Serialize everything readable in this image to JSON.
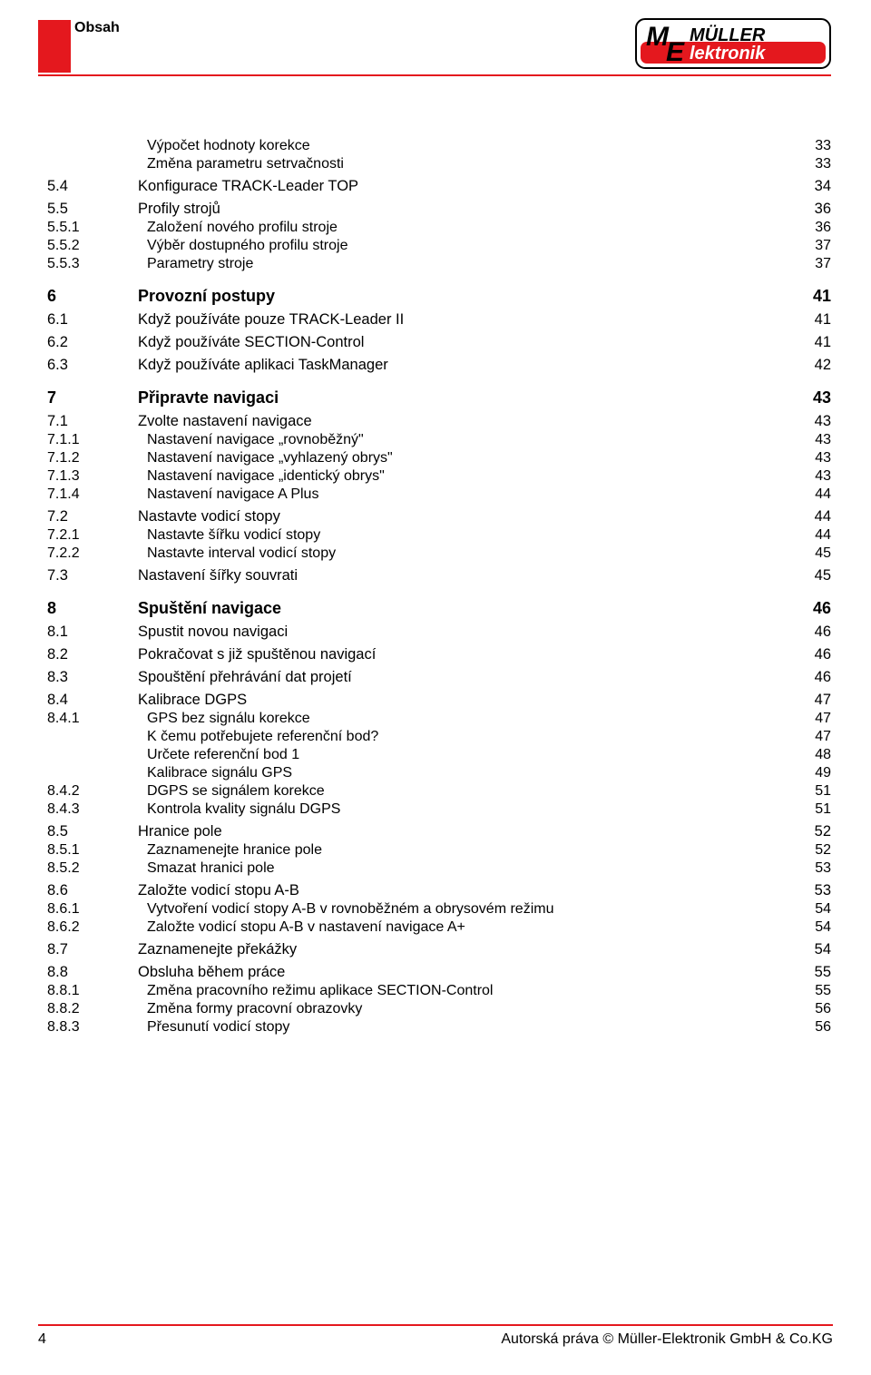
{
  "header": {
    "title": "Obsah",
    "accent_color": "#e4181e"
  },
  "logo": {
    "text_top": "MÜLLER",
    "text_bottom": "Elektronik",
    "frame_color": "#e4181e",
    "text_color": "#000000"
  },
  "toc": [
    {
      "level": "3",
      "num": "",
      "title": "Výpočet hodnoty korekce",
      "page": "33"
    },
    {
      "level": "3",
      "num": "",
      "title": "Změna parametru setrvačnosti",
      "page": "33"
    },
    {
      "level": "1",
      "num": "5.4",
      "title": "Konfigurace TRACK-Leader TOP",
      "page": "34"
    },
    {
      "level": "1",
      "num": "5.5",
      "title": "Profily strojů",
      "page": "36"
    },
    {
      "level": "2",
      "num": "5.5.1",
      "title": "Založení nového profilu stroje",
      "page": "36"
    },
    {
      "level": "2",
      "num": "5.5.2",
      "title": "Výběr dostupného profilu stroje",
      "page": "37"
    },
    {
      "level": "2",
      "num": "5.5.3",
      "title": "Parametry stroje",
      "page": "37"
    },
    {
      "level": "h",
      "num": "6",
      "title": "Provozní postupy",
      "page": "41"
    },
    {
      "level": "1",
      "num": "6.1",
      "title": "Když používáte pouze TRACK-Leader II",
      "page": "41"
    },
    {
      "level": "1",
      "num": "6.2",
      "title": "Když používáte SECTION-Control",
      "page": "41"
    },
    {
      "level": "1",
      "num": "6.3",
      "title": "Když používáte aplikaci TaskManager",
      "page": "42"
    },
    {
      "level": "h",
      "num": "7",
      "title": "Připravte navigaci",
      "page": "43"
    },
    {
      "level": "1",
      "num": "7.1",
      "title": "Zvolte nastavení navigace",
      "page": "43"
    },
    {
      "level": "2",
      "num": "7.1.1",
      "title": "Nastavení navigace „rovnoběžný\"",
      "page": "43"
    },
    {
      "level": "2",
      "num": "7.1.2",
      "title": "Nastavení navigace „vyhlazený obrys\"",
      "page": "43"
    },
    {
      "level": "2",
      "num": "7.1.3",
      "title": "Nastavení navigace „identický obrys\"",
      "page": "43"
    },
    {
      "level": "2",
      "num": "7.1.4",
      "title": "Nastavení navigace A Plus",
      "page": "44"
    },
    {
      "level": "1",
      "num": "7.2",
      "title": "Nastavte vodicí stopy",
      "page": "44"
    },
    {
      "level": "2",
      "num": "7.2.1",
      "title": "Nastavte šířku vodicí stopy",
      "page": "44"
    },
    {
      "level": "2",
      "num": "7.2.2",
      "title": "Nastavte interval vodicí stopy",
      "page": "45"
    },
    {
      "level": "1",
      "num": "7.3",
      "title": "Nastavení šířky souvrati",
      "page": "45"
    },
    {
      "level": "h",
      "num": "8",
      "title": "Spuštění navigace",
      "page": "46"
    },
    {
      "level": "1",
      "num": "8.1",
      "title": "Spustit novou navigaci",
      "page": "46"
    },
    {
      "level": "1",
      "num": "8.2",
      "title": "Pokračovat s již spuštěnou navigací",
      "page": "46"
    },
    {
      "level": "1",
      "num": "8.3",
      "title": "Spouštění přehrávání dat projetí",
      "page": "46"
    },
    {
      "level": "1",
      "num": "8.4",
      "title": "Kalibrace DGPS",
      "page": "47"
    },
    {
      "level": "2",
      "num": "8.4.1",
      "title": "GPS bez signálu korekce",
      "page": "47"
    },
    {
      "level": "3",
      "num": "",
      "title": "K čemu potřebujete referenční bod?",
      "page": "47"
    },
    {
      "level": "3",
      "num": "",
      "title": "Určete referenční bod 1",
      "page": "48"
    },
    {
      "level": "3",
      "num": "",
      "title": "Kalibrace signálu GPS",
      "page": "49"
    },
    {
      "level": "2",
      "num": "8.4.2",
      "title": "DGPS se signálem korekce",
      "page": "51"
    },
    {
      "level": "2",
      "num": "8.4.3",
      "title": "Kontrola kvality signálu DGPS",
      "page": "51"
    },
    {
      "level": "1",
      "num": "8.5",
      "title": "Hranice pole",
      "page": "52"
    },
    {
      "level": "2",
      "num": "8.5.1",
      "title": "Zaznamenejte hranice pole",
      "page": "52"
    },
    {
      "level": "2",
      "num": "8.5.2",
      "title": "Smazat hranici pole",
      "page": "53"
    },
    {
      "level": "1",
      "num": "8.6",
      "title": "Založte vodicí stopu A-B",
      "page": "53"
    },
    {
      "level": "2",
      "num": "8.6.1",
      "title": "Vytvoření vodicí stopy A-B v rovnoběžném a obrysovém režimu",
      "page": "54"
    },
    {
      "level": "2",
      "num": "8.6.2",
      "title": "Založte vodicí stopu A-B v nastavení navigace A+",
      "page": "54"
    },
    {
      "level": "1",
      "num": "8.7",
      "title": "Zaznamenejte překážky",
      "page": "54"
    },
    {
      "level": "1",
      "num": "8.8",
      "title": "Obsluha během práce",
      "page": "55"
    },
    {
      "level": "2",
      "num": "8.8.1",
      "title": "Změna pracovního režimu aplikace SECTION-Control",
      "page": "55"
    },
    {
      "level": "2",
      "num": "8.8.2",
      "title": "Změna formy pracovní obrazovky",
      "page": "56"
    },
    {
      "level": "2",
      "num": "8.8.3",
      "title": "Přesunutí vodicí stopy",
      "page": "56"
    }
  ],
  "footer": {
    "page_number": "4",
    "copyright": "Autorská práva © Müller-Elektronik GmbH & Co.KG"
  }
}
